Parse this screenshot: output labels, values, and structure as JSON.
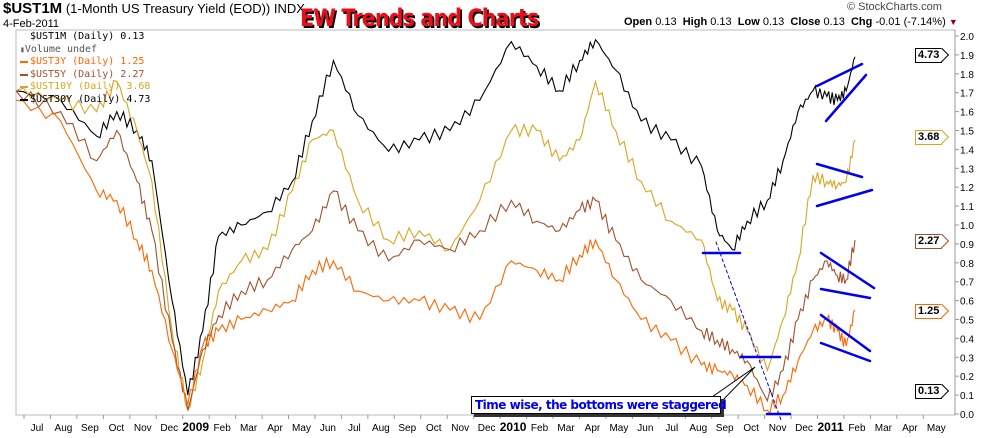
{
  "header": {
    "symbol": "$UST1M",
    "description": "(1-Month US Treasury Yield (EOD)) INDX",
    "date": "4-Feb-2011",
    "title": "EW Trends and Charts",
    "copyright": "© StockCharts.com",
    "ohlc": {
      "open_label": "Open",
      "open": "0.13",
      "high_label": "High",
      "high": "0.13",
      "low_label": "Low",
      "low": "0.13",
      "close_label": "Close",
      "close": "0.13",
      "chg_label": "Chg",
      "chg": "-0.01 (-7.14%)"
    },
    "chg_direction": "down"
  },
  "legend": [
    {
      "text": "$UST1M (Daily) 0.13",
      "color": "#000000",
      "icon": "none"
    },
    {
      "text": "Volume undef",
      "color": "#555555",
      "icon": "volume-bars-icon"
    },
    {
      "text": "$UST3Y (Daily) 1.25",
      "color": "#ff6600"
    },
    {
      "text": "$UST5Y (Daily) 2.27",
      "color": "#a0522d"
    },
    {
      "text": "$UST10Y (Daily) 3.68",
      "color": "#daa520"
    },
    {
      "text": "$UST30Y (Daily) 4.73",
      "color": "#000000"
    }
  ],
  "annotation": {
    "text": "Time wise, the bottoms were staggered",
    "color": "#0000ee"
  },
  "chart_data": {
    "type": "line",
    "ylim": [
      0,
      2.0
    ],
    "yticks": [
      "0.0",
      "0.1",
      "0.2",
      "0.3",
      "0.4",
      "0.5",
      "0.6",
      "0.7",
      "0.8",
      "0.9",
      "1.0",
      "1.1",
      "1.2",
      "1.3",
      "1.4",
      "1.5",
      "1.6",
      "1.7",
      "1.8",
      "1.9",
      "2.0"
    ],
    "xticks": [
      "Jul",
      "Aug",
      "Sep",
      "Oct",
      "Nov",
      "Dec",
      "2009",
      "Feb",
      "Mar",
      "Apr",
      "May",
      "Jun",
      "Jul",
      "Aug",
      "Sep",
      "Oct",
      "Nov",
      "Dec",
      "2010",
      "Feb",
      "Mar",
      "Apr",
      "May",
      "Jun",
      "Jul",
      "Aug",
      "Sep",
      "Oct",
      "Nov",
      "Dec",
      "2011",
      "Feb",
      "Mar",
      "Apr",
      "May"
    ],
    "grid": false,
    "legend_position": "top-left",
    "x": [
      "2008-06-22",
      "2008-08-12",
      "2008-09-22",
      "2008-10-15",
      "2008-11-07",
      "2008-11-24",
      "2008-12-17",
      "2009-01-04",
      "2009-01-21",
      "2009-02-08",
      "2009-03-06",
      "2009-04-05",
      "2009-05-03",
      "2009-05-26",
      "2009-06-19",
      "2009-07-17",
      "2009-08-21",
      "2009-09-25",
      "2009-10-30",
      "2009-12-03",
      "2010-01-08",
      "2010-02-06",
      "2010-03-04",
      "2010-03-27",
      "2010-04-14",
      "2010-05-07",
      "2010-06-05",
      "2010-07-09",
      "2010-08-13",
      "2010-08-31",
      "2010-09-17",
      "2010-10-04",
      "2010-10-27",
      "2010-11-14",
      "2010-12-01",
      "2010-12-18",
      "2011-01-03",
      "2011-01-15",
      "2011-01-25",
      "2011-02-04"
    ],
    "series": [
      {
        "name": "$UST30Y (Daily) 4.73",
        "color": "#000000",
        "last": "4.73",
        "values": [
          1.71,
          1.66,
          1.47,
          1.6,
          1.5,
          1.34,
          0.6,
          0.1,
          0.44,
          0.94,
          1.0,
          1.07,
          1.23,
          1.55,
          1.87,
          1.58,
          1.39,
          1.45,
          1.5,
          1.66,
          1.97,
          1.84,
          1.71,
          1.87,
          1.98,
          1.82,
          1.55,
          1.45,
          1.31,
          0.97,
          0.87,
          1.02,
          1.13,
          1.34,
          1.6,
          1.71,
          1.68,
          1.66,
          1.71,
          1.89
        ]
      },
      {
        "name": "$UST10Y (Daily) 3.68",
        "color": "#daa520",
        "last": "3.68",
        "values": [
          1.71,
          1.66,
          1.6,
          1.76,
          1.5,
          1.23,
          0.44,
          0.02,
          0.28,
          0.65,
          0.81,
          0.87,
          1.18,
          1.45,
          1.5,
          1.13,
          0.92,
          0.97,
          0.87,
          1.13,
          1.5,
          1.5,
          1.34,
          1.45,
          1.76,
          1.5,
          1.23,
          1.02,
          0.92,
          0.6,
          0.55,
          0.44,
          0.23,
          0.5,
          0.81,
          1.26,
          1.23,
          1.21,
          1.23,
          1.45
        ]
      },
      {
        "name": "$UST5Y (Daily) 2.27",
        "color": "#a0522d",
        "last": "2.27",
        "values": [
          1.71,
          1.6,
          1.34,
          1.5,
          1.23,
          0.97,
          0.39,
          0.02,
          0.34,
          0.52,
          0.65,
          0.71,
          0.87,
          0.97,
          1.18,
          0.97,
          0.81,
          0.92,
          0.87,
          0.97,
          1.13,
          1.02,
          0.97,
          1.08,
          1.13,
          0.92,
          0.71,
          0.6,
          0.44,
          0.39,
          0.34,
          0.28,
          0.07,
          0.23,
          0.5,
          0.71,
          0.81,
          0.73,
          0.71,
          0.92
        ]
      },
      {
        "name": "$UST3Y (Daily) 1.25",
        "color": "#ff6600",
        "last": "1.25",
        "values": [
          1.66,
          1.55,
          1.18,
          1.13,
          0.92,
          0.76,
          0.34,
          0.05,
          0.36,
          0.44,
          0.5,
          0.55,
          0.6,
          0.76,
          0.81,
          0.65,
          0.6,
          0.6,
          0.55,
          0.5,
          0.81,
          0.76,
          0.71,
          0.84,
          0.92,
          0.71,
          0.5,
          0.39,
          0.26,
          0.23,
          0.21,
          0.15,
          0.02,
          0.1,
          0.28,
          0.44,
          0.5,
          0.44,
          0.36,
          0.55
        ]
      }
    ],
    "price_badges": [
      {
        "text": "4.73",
        "color": "#000000"
      },
      {
        "text": "3.68",
        "color": "#daa520"
      },
      {
        "text": "2.27",
        "color": "#a0522d"
      },
      {
        "text": "1.25",
        "color": "#ff6600"
      },
      {
        "text": "0.13",
        "color": "#000000"
      }
    ]
  }
}
